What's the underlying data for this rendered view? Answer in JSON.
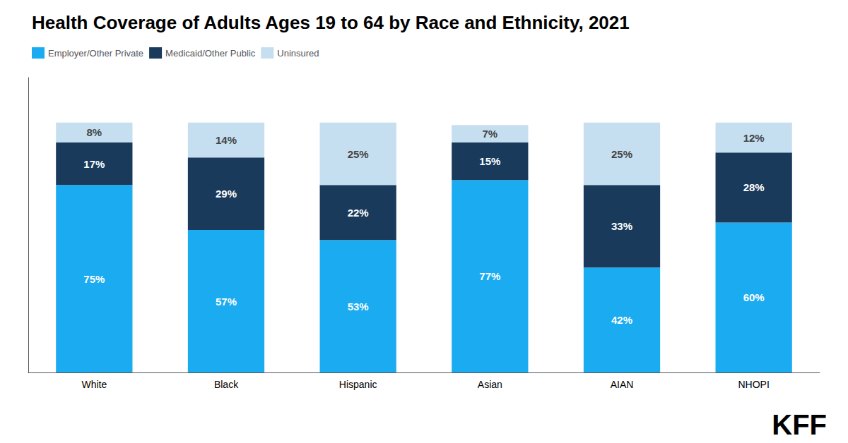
{
  "chart_data": {
    "type": "bar",
    "title": "Health Coverage of Adults Ages 19 to 64 by Race and Ethnicity, 2021",
    "categories": [
      "White",
      "Black",
      "Hispanic",
      "Asian",
      "AIAN",
      "NHOPI"
    ],
    "series": [
      {
        "name": "Employer/Other Private",
        "color": "#1aabf0",
        "values": [
          75,
          57,
          53,
          77,
          42,
          60
        ],
        "value_labels": [
          "75%",
          "57%",
          "53%",
          "77%",
          "42%",
          "60%"
        ]
      },
      {
        "name": "Medicaid/Other Public",
        "color": "#1a3a5c",
        "values": [
          17,
          29,
          22,
          15,
          33,
          28
        ],
        "value_labels": [
          "17%",
          "29%",
          "22%",
          "15%",
          "33%",
          "28%"
        ]
      },
      {
        "name": "Uninsured",
        "color": "#c5dff0",
        "values": [
          8,
          14,
          25,
          7,
          25,
          12
        ],
        "value_labels": [
          "8%",
          "14%",
          "25%",
          "7%",
          "25%",
          "12%"
        ]
      }
    ],
    "stacked": true,
    "data_labels": true,
    "ylim": [
      0,
      118
    ],
    "tick_labels": "x",
    "grid": false,
    "legend": "upper left",
    "annotations": [
      "KFF"
    ]
  }
}
